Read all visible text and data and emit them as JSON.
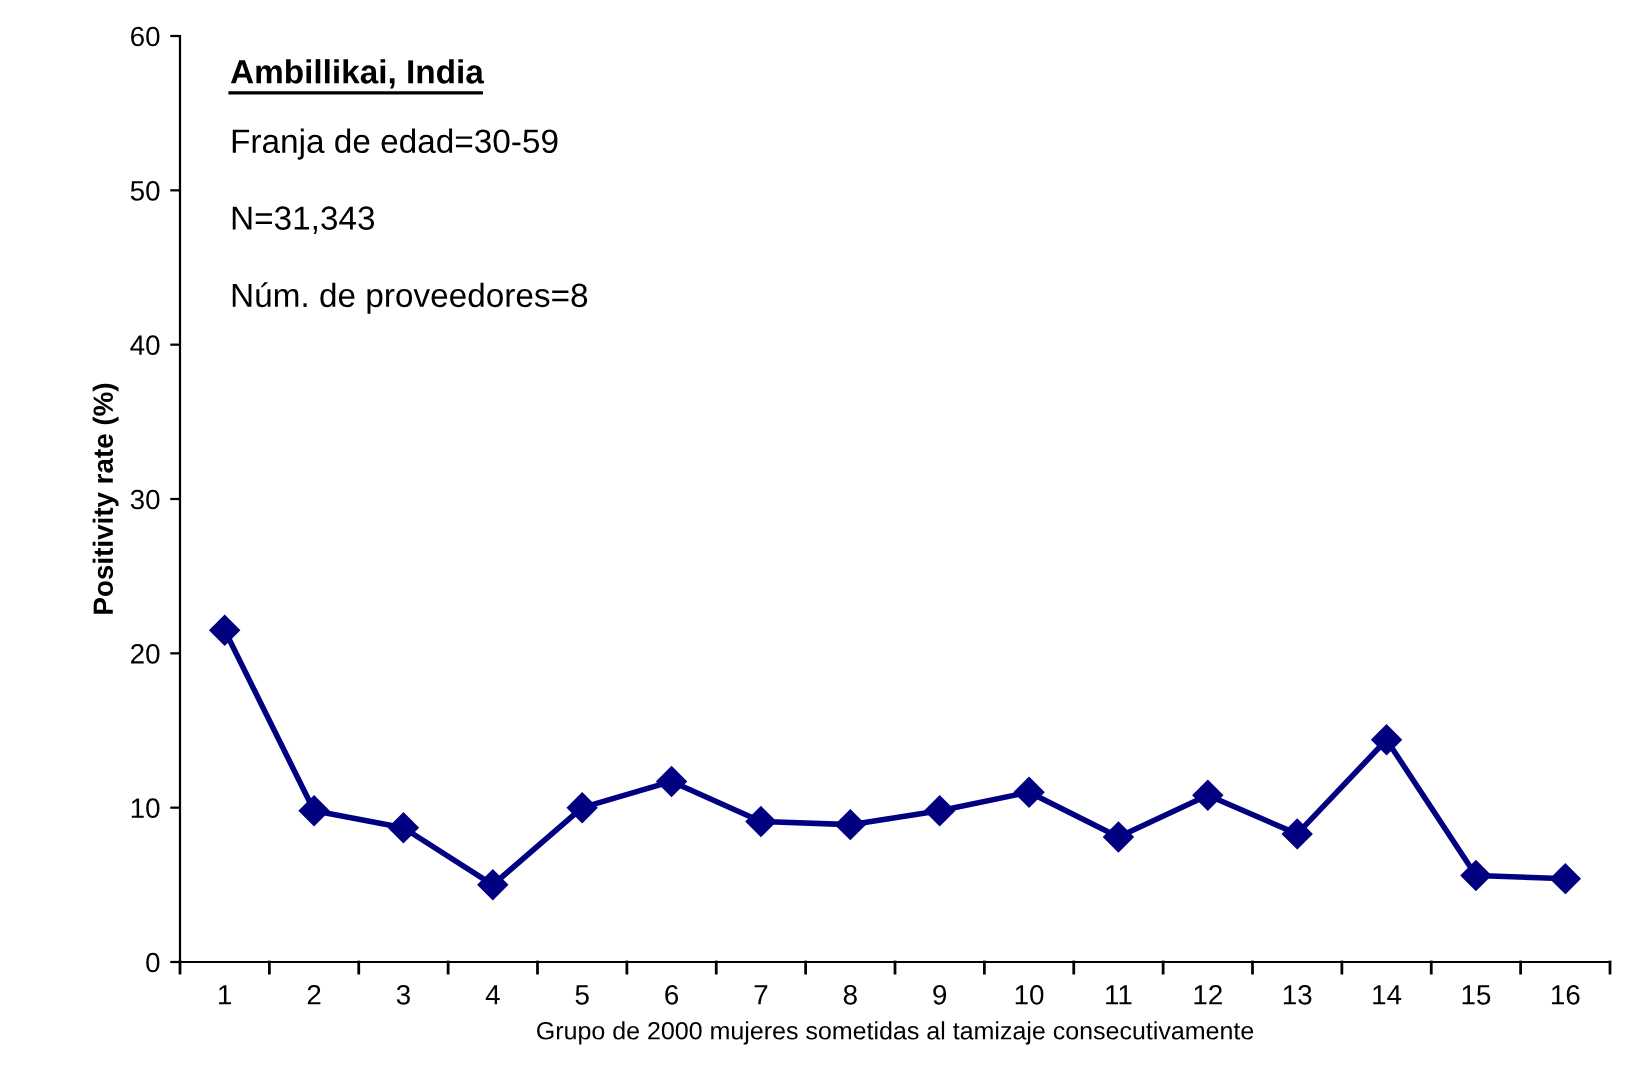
{
  "chart_data": {
    "type": "line",
    "title": "Ambillikai, India",
    "annotations": [
      "Franja de edad=30-59",
      "N=31,343",
      "Núm. de proveedores=8"
    ],
    "xlabel": "Grupo de 2000 mujeres sometidas al tamizaje consecutivamente",
    "ylabel": "Positivity rate (%)",
    "categories": [
      "1",
      "2",
      "3",
      "4",
      "5",
      "6",
      "7",
      "8",
      "9",
      "10",
      "11",
      "12",
      "13",
      "14",
      "15",
      "16"
    ],
    "series": [
      {
        "color": "#000080",
        "values": [
          21.5,
          9.8,
          8.7,
          5.0,
          10.0,
          11.7,
          9.1,
          8.9,
          9.8,
          11.0,
          8.1,
          10.8,
          8.3,
          14.4,
          5.6,
          5.4
        ]
      }
    ],
    "ylim": [
      0,
      60
    ],
    "yticks": [
      0,
      10,
      20,
      30,
      40,
      50,
      60
    ],
    "marker": "diamond",
    "line_style": "solid",
    "grid": false,
    "legend": false
  }
}
